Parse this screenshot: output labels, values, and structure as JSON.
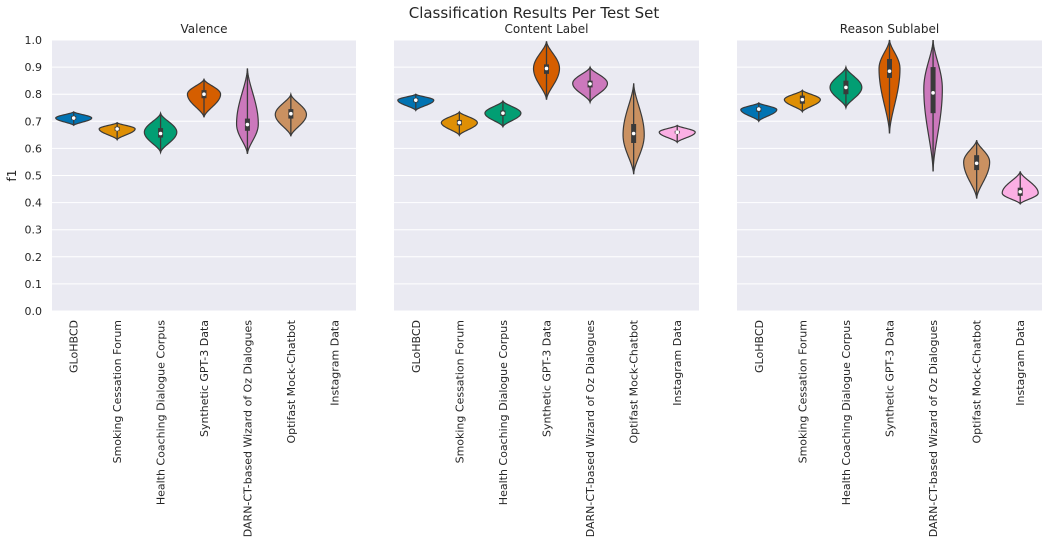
{
  "figure": {
    "title": "Classification Results Per Test Set"
  },
  "colors": {
    "background": "#eaeaf2",
    "grid": "#ffffff",
    "palette": [
      "#0173b2",
      "#de8f05",
      "#029e73",
      "#d55e00",
      "#cc78bc",
      "#ca9161",
      "#fbafe4"
    ]
  },
  "chart_data": [
    {
      "type": "violin",
      "title": "Valence",
      "ylabel": "f1",
      "ylim": [
        0,
        1
      ],
      "yticks": [
        "0.0",
        "0.1",
        "0.2",
        "0.3",
        "0.4",
        "0.5",
        "0.6",
        "0.7",
        "0.8",
        "0.9",
        "1.0"
      ],
      "grid": true,
      "categories": [
        "GLoHBCD",
        "Smoking Cessation Forum",
        "Health Coaching Dialogue Corpus",
        "Synthetic GPT-3 Data",
        "DARN-CT-based Wizard of Oz Dialogues",
        "Optifast Mock-Chatbot",
        "Instagram Data"
      ],
      "violins": [
        {
          "median": 0.712,
          "min": 0.685,
          "max": 0.735,
          "q1": 0.705,
          "q3": 0.72,
          "peak": 0.712
        },
        {
          "median": 0.672,
          "min": 0.632,
          "max": 0.695,
          "q1": 0.665,
          "q3": 0.68,
          "peak": 0.672
        },
        {
          "median": 0.655,
          "min": 0.585,
          "max": 0.73,
          "q1": 0.64,
          "q3": 0.675,
          "peak": 0.66
        },
        {
          "median": 0.8,
          "min": 0.715,
          "max": 0.855,
          "q1": 0.785,
          "q3": 0.815,
          "peak": 0.8
        },
        {
          "median": 0.688,
          "min": 0.58,
          "max": 0.895,
          "q1": 0.665,
          "q3": 0.71,
          "peak": 0.69
        },
        {
          "median": 0.728,
          "min": 0.645,
          "max": 0.8,
          "q1": 0.71,
          "q3": 0.745,
          "peak": 0.725
        },
        null
      ]
    },
    {
      "type": "violin",
      "title": "Content Label",
      "ylim": [
        0,
        1
      ],
      "grid": true,
      "categories": [
        "GLoHBCD",
        "Smoking Cessation Forum",
        "Health Coaching Dialogue Corpus",
        "Synthetic GPT-3 Data",
        "DARN-CT-based Wizard of Oz Dialogues",
        "Optifast Mock-Chatbot",
        "Instagram Data"
      ],
      "violins": [
        {
          "median": 0.778,
          "min": 0.74,
          "max": 0.8,
          "q1": 0.77,
          "q3": 0.785,
          "peak": 0.778
        },
        {
          "median": 0.695,
          "min": 0.648,
          "max": 0.735,
          "q1": 0.685,
          "q3": 0.705,
          "peak": 0.695
        },
        {
          "median": 0.73,
          "min": 0.68,
          "max": 0.775,
          "q1": 0.72,
          "q3": 0.74,
          "peak": 0.73
        },
        {
          "median": 0.895,
          "min": 0.78,
          "max": 0.995,
          "q1": 0.875,
          "q3": 0.91,
          "peak": 0.895
        },
        {
          "median": 0.838,
          "min": 0.77,
          "max": 0.9,
          "q1": 0.825,
          "q3": 0.85,
          "peak": 0.84
        },
        {
          "median": 0.655,
          "min": 0.505,
          "max": 0.84,
          "q1": 0.62,
          "q3": 0.69,
          "peak": 0.65
        },
        {
          "median": 0.66,
          "min": 0.622,
          "max": 0.685,
          "q1": 0.655,
          "q3": 0.665,
          "peak": 0.66
        }
      ]
    },
    {
      "type": "violin",
      "title": "Reason Sublabel",
      "ylim": [
        0,
        1
      ],
      "grid": true,
      "categories": [
        "GLoHBCD",
        "Smoking Cessation Forum",
        "Health Coaching Dialogue Corpus",
        "Synthetic GPT-3 Data",
        "DARN-CT-based Wizard of Oz Dialogues",
        "Optifast Mock-Chatbot",
        "Instagram Data"
      ],
      "violins": [
        {
          "median": 0.745,
          "min": 0.7,
          "max": 0.768,
          "q1": 0.735,
          "q3": 0.752,
          "peak": 0.743
        },
        {
          "median": 0.78,
          "min": 0.735,
          "max": 0.815,
          "q1": 0.765,
          "q3": 0.795,
          "peak": 0.78
        },
        {
          "median": 0.825,
          "min": 0.75,
          "max": 0.9,
          "q1": 0.8,
          "q3": 0.85,
          "peak": 0.825
        },
        {
          "median": 0.885,
          "min": 0.655,
          "max": 1.0,
          "q1": 0.86,
          "q3": 0.93,
          "peak": 0.895
        },
        {
          "median": 0.805,
          "min": 0.515,
          "max": 1.0,
          "q1": 0.73,
          "q3": 0.9,
          "peak": 0.82
        },
        {
          "median": 0.545,
          "min": 0.415,
          "max": 0.63,
          "q1": 0.52,
          "q3": 0.575,
          "peak": 0.55
        },
        {
          "median": 0.44,
          "min": 0.395,
          "max": 0.515,
          "q1": 0.425,
          "q3": 0.455,
          "peak": 0.435
        }
      ]
    }
  ]
}
